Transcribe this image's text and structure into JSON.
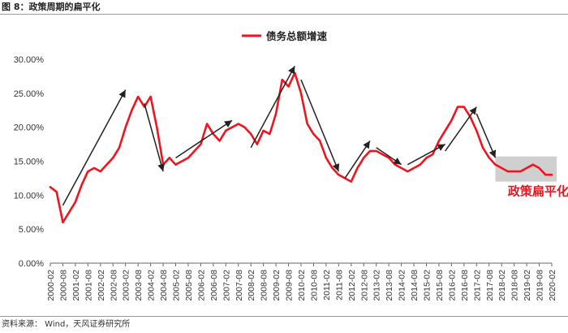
{
  "figure_title": "图 8：政策周期的扁平化",
  "source": "资料来源： Wind，天风证券研究所",
  "colors": {
    "series": "#f0141e",
    "arrow": "#222222",
    "highlight": "#bfbfbf",
    "annotation": "#e8141f"
  },
  "chart_data": {
    "type": "line",
    "series": [
      {
        "name": "债务总额增速",
        "x": [
          "2000-02",
          "2000-05",
          "2000-08",
          "2000-11",
          "2001-02",
          "2001-05",
          "2001-08",
          "2001-11",
          "2002-02",
          "2002-05",
          "2002-08",
          "2002-11",
          "2003-02",
          "2003-05",
          "2003-08",
          "2003-11",
          "2004-02",
          "2004-05",
          "2004-08",
          "2004-11",
          "2005-02",
          "2005-05",
          "2005-08",
          "2005-11",
          "2006-02",
          "2006-05",
          "2006-08",
          "2006-11",
          "2007-02",
          "2007-05",
          "2007-08",
          "2007-11",
          "2008-02",
          "2008-05",
          "2008-08",
          "2008-11",
          "2009-02",
          "2009-05",
          "2009-08",
          "2009-11",
          "2010-02",
          "2010-05",
          "2010-08",
          "2010-11",
          "2011-02",
          "2011-05",
          "2011-08",
          "2011-11",
          "2012-02",
          "2012-05",
          "2012-08",
          "2012-11",
          "2013-02",
          "2013-05",
          "2013-08",
          "2013-11",
          "2014-02",
          "2014-05",
          "2014-08",
          "2014-11",
          "2015-02",
          "2015-05",
          "2015-08",
          "2015-11",
          "2016-02",
          "2016-05",
          "2016-08",
          "2016-11",
          "2017-02",
          "2017-05",
          "2017-08",
          "2017-11",
          "2018-02",
          "2018-05",
          "2018-08",
          "2018-11",
          "2019-02",
          "2019-05",
          "2019-08",
          "2019-11",
          "2020-02"
        ],
        "values": [
          11.2,
          10.5,
          6.0,
          7.5,
          9.0,
          11.5,
          13.5,
          14.0,
          13.5,
          14.5,
          15.5,
          17.0,
          20.0,
          22.5,
          24.5,
          23.0,
          24.5,
          20.0,
          14.5,
          15.5,
          14.5,
          15.0,
          15.5,
          16.5,
          17.5,
          20.5,
          19.0,
          18.0,
          19.5,
          20.0,
          20.5,
          20.0,
          19.0,
          17.5,
          19.5,
          19.0,
          22.0,
          27.0,
          26.0,
          28.0,
          25.0,
          20.5,
          19.0,
          18.0,
          15.5,
          14.0,
          13.0,
          12.5,
          12.0,
          14.0,
          15.5,
          16.5,
          16.5,
          16.0,
          15.5,
          14.5,
          14.0,
          13.5,
          14.0,
          14.5,
          15.5,
          16.0,
          18.0,
          19.5,
          21.0,
          23.0,
          23.0,
          21.5,
          19.5,
          17.0,
          15.5,
          14.5,
          14.0,
          13.5,
          13.5,
          13.5,
          14.0,
          14.5,
          14.0,
          13.0,
          13.0
        ]
      }
    ],
    "x_tick_labels": [
      "2000-02",
      "2000-08",
      "2001-02",
      "2001-08",
      "2002-02",
      "2002-08",
      "2003-02",
      "2003-08",
      "2004-02",
      "2004-08",
      "2005-02",
      "2005-08",
      "2006-02",
      "2006-08",
      "2007-02",
      "2007-08",
      "2008-02",
      "2008-08",
      "2009-02",
      "2009-08",
      "2010-02",
      "2010-08",
      "2011-02",
      "2011-08",
      "2012-02",
      "2012-08",
      "2013-02",
      "2013-08",
      "2014-02",
      "2014-08",
      "2015-02",
      "2015-08",
      "2016-02",
      "2016-08",
      "2017-02",
      "2017-08",
      "2018-02",
      "2018-08",
      "2019-02",
      "2019-08",
      "2020-02"
    ],
    "y_tick_labels": [
      "0.00%",
      "5.00%",
      "10.00%",
      "15.00%",
      "20.00%",
      "25.00%",
      "30.00%"
    ],
    "ylim": [
      0,
      30
    ],
    "y_unit": "%",
    "grid": false,
    "legend": {
      "position": "top-center",
      "label": "债务总额增速"
    },
    "annotations": [
      {
        "type": "arrow",
        "from": [
          "2000-08",
          8.5
        ],
        "to": [
          "2003-02",
          25.5
        ]
      },
      {
        "type": "arrow",
        "from": [
          "2003-11",
          23.5
        ],
        "to": [
          "2004-08",
          13.5
        ]
      },
      {
        "type": "arrow",
        "from": [
          "2005-02",
          15.5
        ],
        "to": [
          "2007-05",
          21.0
        ]
      },
      {
        "type": "arrow",
        "from": [
          "2008-02",
          17.0
        ],
        "to": [
          "2009-11",
          29.0
        ]
      },
      {
        "type": "arrow",
        "from": [
          "2010-02",
          27.0
        ],
        "to": [
          "2011-08",
          13.5
        ]
      },
      {
        "type": "arrow",
        "from": [
          "2011-11",
          12.5
        ],
        "to": [
          "2012-11",
          18.0
        ]
      },
      {
        "type": "arrow",
        "from": [
          "2013-02",
          17.0
        ],
        "to": [
          "2014-02",
          14.5
        ]
      },
      {
        "type": "arrow",
        "from": [
          "2014-05",
          14.5
        ],
        "to": [
          "2015-11",
          17.5
        ]
      },
      {
        "type": "arrow",
        "from": [
          "2015-11",
          16.5
        ],
        "to": [
          "2017-02",
          23.0
        ]
      },
      {
        "type": "arrow",
        "from": [
          "2017-02",
          22.0
        ],
        "to": [
          "2017-11",
          15.5
        ]
      },
      {
        "type": "highlight_box",
        "x_from": "2017-11",
        "x_to": "2020-02",
        "y_from": 12.0,
        "y_to": 15.7
      },
      {
        "type": "text",
        "text": "政策扁平化",
        "at": [
          "2018-05",
          10.0
        ]
      }
    ]
  }
}
